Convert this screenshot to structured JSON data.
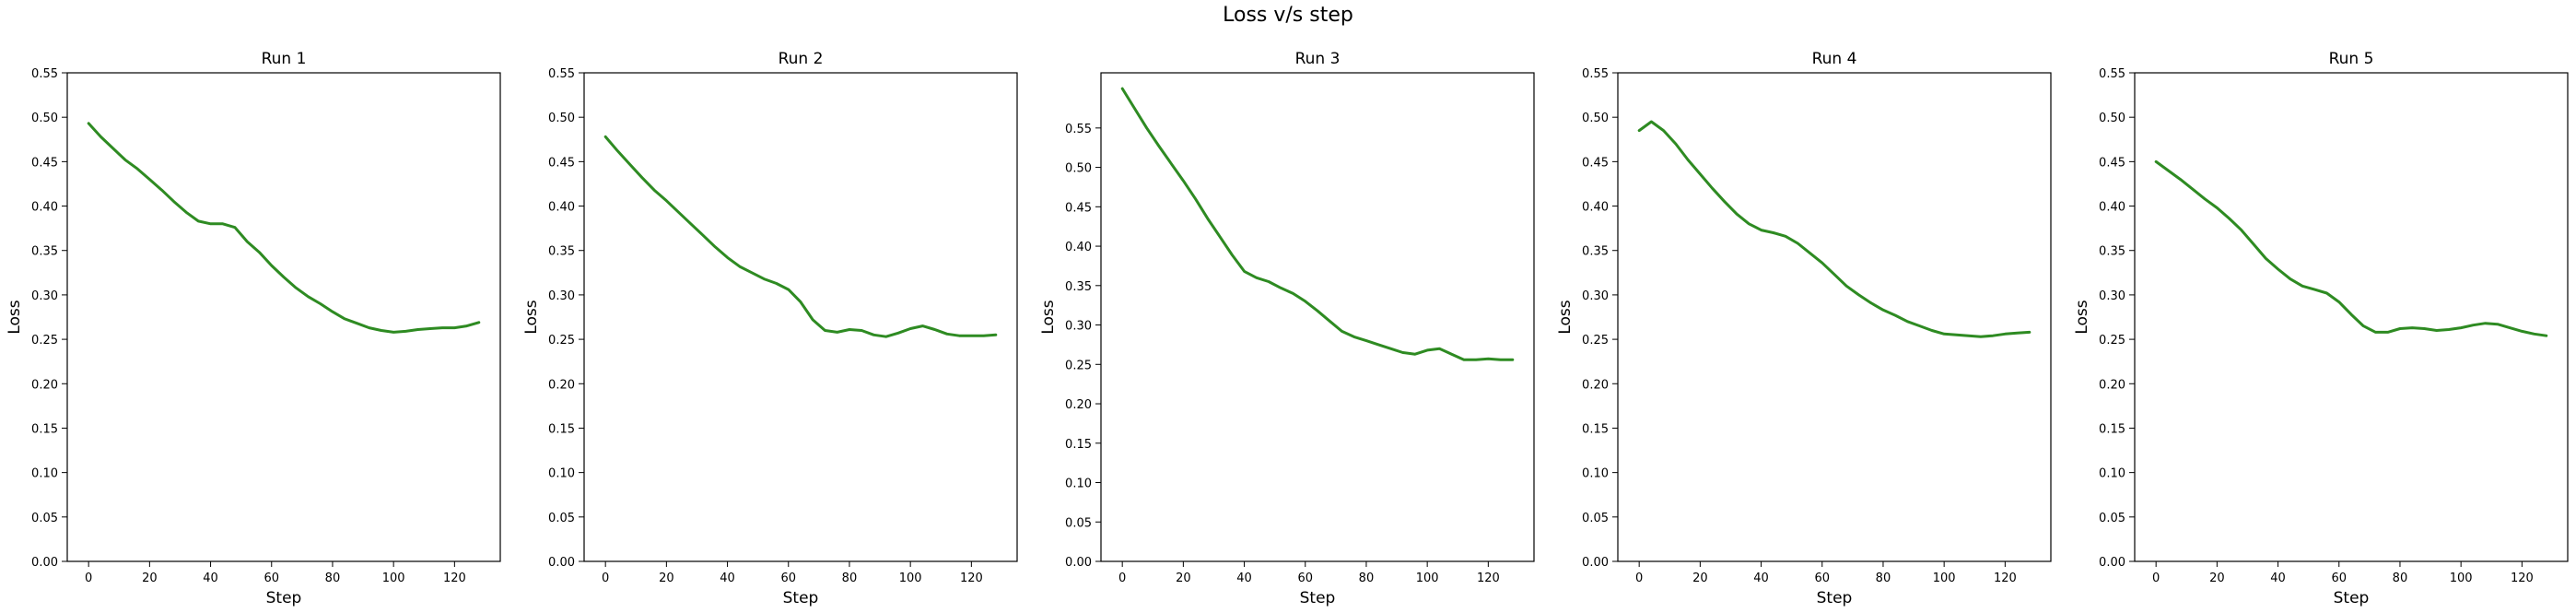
{
  "figure": {
    "title": "Loss v/s step"
  },
  "chart_data": [
    {
      "type": "line",
      "title": "Run 1",
      "xlabel": "Step",
      "ylabel": "Loss",
      "xlim": [
        -7,
        135
      ],
      "ylim": [
        0,
        0.55
      ],
      "xticks": [
        0,
        20,
        40,
        60,
        80,
        100,
        120
      ],
      "yticks": [
        0.0,
        0.05,
        0.1,
        0.15,
        0.2,
        0.25,
        0.3,
        0.35,
        0.4,
        0.45,
        0.5,
        0.55
      ],
      "grid": false,
      "series": [
        {
          "color": "#2e8b22",
          "x": [
            0,
            4,
            8,
            12,
            16,
            20,
            24,
            28,
            32,
            36,
            40,
            44,
            48,
            52,
            56,
            60,
            64,
            68,
            72,
            76,
            80,
            84,
            88,
            92,
            96,
            100,
            104,
            108,
            112,
            116,
            120,
            124,
            128
          ],
          "y": [
            0.493,
            0.478,
            0.465,
            0.452,
            0.442,
            0.43,
            0.418,
            0.405,
            0.393,
            0.383,
            0.38,
            0.38,
            0.376,
            0.36,
            0.348,
            0.333,
            0.32,
            0.308,
            0.298,
            0.29,
            0.281,
            0.273,
            0.268,
            0.263,
            0.26,
            0.258,
            0.259,
            0.261,
            0.262,
            0.263,
            0.263,
            0.265,
            0.269
          ]
        }
      ]
    },
    {
      "type": "line",
      "title": "Run 2",
      "xlabel": "Step",
      "ylabel": "Loss",
      "xlim": [
        -7,
        135
      ],
      "ylim": [
        0,
        0.55
      ],
      "xticks": [
        0,
        20,
        40,
        60,
        80,
        100,
        120
      ],
      "yticks": [
        0.0,
        0.05,
        0.1,
        0.15,
        0.2,
        0.25,
        0.3,
        0.35,
        0.4,
        0.45,
        0.5,
        0.55
      ],
      "grid": false,
      "series": [
        {
          "color": "#2e8b22",
          "x": [
            0,
            4,
            8,
            12,
            16,
            20,
            24,
            28,
            32,
            36,
            40,
            44,
            48,
            52,
            56,
            60,
            64,
            68,
            72,
            76,
            80,
            84,
            88,
            92,
            96,
            100,
            104,
            108,
            112,
            116,
            120,
            124,
            128
          ],
          "y": [
            0.478,
            0.462,
            0.447,
            0.432,
            0.418,
            0.406,
            0.393,
            0.38,
            0.367,
            0.354,
            0.342,
            0.332,
            0.325,
            0.318,
            0.313,
            0.306,
            0.292,
            0.272,
            0.26,
            0.258,
            0.261,
            0.26,
            0.255,
            0.253,
            0.257,
            0.262,
            0.265,
            0.261,
            0.256,
            0.254,
            0.254,
            0.254,
            0.255
          ]
        }
      ]
    },
    {
      "type": "line",
      "title": "Run 3",
      "xlabel": "Step",
      "ylabel": "Loss",
      "xlim": [
        -7,
        135
      ],
      "ylim": [
        0,
        0.62
      ],
      "xticks": [
        0,
        20,
        40,
        60,
        80,
        100,
        120
      ],
      "yticks": [
        0.0,
        0.05,
        0.1,
        0.15,
        0.2,
        0.25,
        0.3,
        0.35,
        0.4,
        0.45,
        0.5,
        0.55
      ],
      "grid": false,
      "series": [
        {
          "color": "#2e8b22",
          "x": [
            0,
            4,
            8,
            12,
            16,
            20,
            24,
            28,
            32,
            36,
            40,
            44,
            48,
            52,
            56,
            60,
            64,
            68,
            72,
            76,
            80,
            84,
            88,
            92,
            96,
            100,
            104,
            108,
            112,
            116,
            120,
            124,
            128
          ],
          "y": [
            0.6,
            0.575,
            0.55,
            0.527,
            0.505,
            0.483,
            0.46,
            0.435,
            0.412,
            0.389,
            0.368,
            0.36,
            0.355,
            0.347,
            0.34,
            0.33,
            0.318,
            0.305,
            0.292,
            0.285,
            0.28,
            0.275,
            0.27,
            0.265,
            0.263,
            0.268,
            0.27,
            0.263,
            0.256,
            0.256,
            0.257,
            0.256,
            0.256
          ]
        }
      ]
    },
    {
      "type": "line",
      "title": "Run 4",
      "xlabel": "Step",
      "ylabel": "Loss",
      "xlim": [
        -7,
        135
      ],
      "ylim": [
        0,
        0.55
      ],
      "xticks": [
        0,
        20,
        40,
        60,
        80,
        100,
        120
      ],
      "yticks": [
        0.0,
        0.05,
        0.1,
        0.15,
        0.2,
        0.25,
        0.3,
        0.35,
        0.4,
        0.45,
        0.5,
        0.55
      ],
      "grid": false,
      "series": [
        {
          "color": "#2e8b22",
          "x": [
            0,
            4,
            8,
            12,
            16,
            20,
            24,
            28,
            32,
            36,
            40,
            44,
            48,
            52,
            56,
            60,
            64,
            68,
            72,
            76,
            80,
            84,
            88,
            92,
            96,
            100,
            104,
            108,
            112,
            116,
            120,
            124,
            128
          ],
          "y": [
            0.485,
            0.495,
            0.485,
            0.47,
            0.452,
            0.436,
            0.42,
            0.405,
            0.391,
            0.38,
            0.373,
            0.37,
            0.366,
            0.358,
            0.347,
            0.336,
            0.323,
            0.31,
            0.3,
            0.291,
            0.283,
            0.277,
            0.27,
            0.265,
            0.26,
            0.256,
            0.255,
            0.254,
            0.253,
            0.254,
            0.256,
            0.257,
            0.258
          ]
        }
      ]
    },
    {
      "type": "line",
      "title": "Run 5",
      "xlabel": "Step",
      "ylabel": "Loss",
      "xlim": [
        -7,
        135
      ],
      "ylim": [
        0,
        0.55
      ],
      "xticks": [
        0,
        20,
        40,
        60,
        80,
        100,
        120
      ],
      "yticks": [
        0.0,
        0.05,
        0.1,
        0.15,
        0.2,
        0.25,
        0.3,
        0.35,
        0.4,
        0.45,
        0.5,
        0.55
      ],
      "grid": false,
      "series": [
        {
          "color": "#2e8b22",
          "x": [
            0,
            4,
            8,
            12,
            16,
            20,
            24,
            28,
            32,
            36,
            40,
            44,
            48,
            52,
            56,
            60,
            64,
            68,
            72,
            76,
            80,
            84,
            88,
            92,
            96,
            100,
            104,
            108,
            112,
            116,
            120,
            124,
            128
          ],
          "y": [
            0.45,
            0.44,
            0.43,
            0.419,
            0.408,
            0.398,
            0.386,
            0.373,
            0.357,
            0.341,
            0.329,
            0.318,
            0.31,
            0.306,
            0.302,
            0.292,
            0.278,
            0.265,
            0.258,
            0.258,
            0.262,
            0.263,
            0.262,
            0.26,
            0.261,
            0.263,
            0.266,
            0.268,
            0.267,
            0.263,
            0.259,
            0.256,
            0.254
          ]
        }
      ]
    }
  ]
}
